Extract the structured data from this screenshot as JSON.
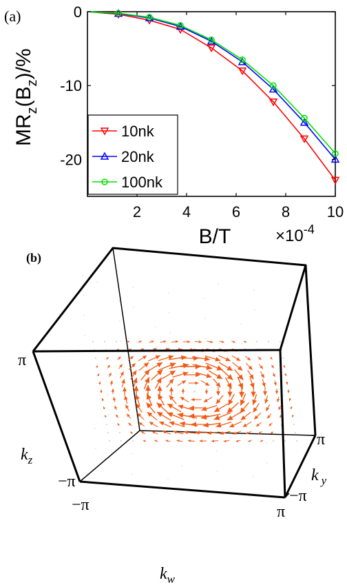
{
  "panel_a": {
    "label": "(a)",
    "chart_data": {
      "type": "line",
      "title": "",
      "xlabel": "B/T",
      "ylabel": "MR",
      "ylabel_sub": "z",
      "ylabel_arg": "(B",
      "ylabel_arg_sub": "z",
      "ylabel_tail": ")/%",
      "xlim": [
        0,
        10
      ],
      "ylim": [
        -25,
        0
      ],
      "x_ticks": [
        2,
        4,
        6,
        8,
        10
      ],
      "y_ticks": [
        0,
        -10,
        -20
      ],
      "x_tick_labels": [
        "2",
        "4",
        "6",
        "8",
        "10"
      ],
      "y_tick_labels": [
        "0",
        "-10",
        "-20"
      ],
      "grid": false,
      "legend_position": "lower-left",
      "x_exponent_label": "×10",
      "x_exponent_power": "-4",
      "x": [
        0,
        1.25,
        2.5,
        3.75,
        5,
        6.25,
        7.5,
        8.75,
        10
      ],
      "series": [
        {
          "name": "10nk",
          "color": "#ff0000",
          "marker": "triangle-down",
          "values": [
            0,
            -0.35,
            -1.15,
            -2.4,
            -4.9,
            -8.0,
            -12.2,
            -17.2,
            -22.8
          ]
        },
        {
          "name": "20nk",
          "color": "#0000ff",
          "marker": "triangle-up",
          "values": [
            0,
            -0.25,
            -0.85,
            -2.0,
            -4.0,
            -6.8,
            -10.5,
            -15.0,
            -20.0
          ]
        },
        {
          "name": "100nk",
          "color": "#00e000",
          "marker": "circle",
          "values": [
            0,
            -0.2,
            -0.75,
            -1.85,
            -3.8,
            -6.5,
            -10.0,
            -14.4,
            -19.2
          ]
        }
      ]
    }
  },
  "panel_b": {
    "label": "(b)",
    "tick_pi_top": "π",
    "tick_neg_pi_left": "−π",
    "tick_neg_pi_bottom": "−π",
    "tick_pi_bottom": "π",
    "tick_pi_mid_right": "π",
    "tick_neg_pi_right": "−π",
    "axis_kz": "k",
    "axis_kz_sub": "z",
    "axis_ky": "k",
    "axis_ky_sub": "y",
    "axis_kw": "k",
    "axis_kw_sub": "w",
    "arrow_color": "#f05a14"
  }
}
